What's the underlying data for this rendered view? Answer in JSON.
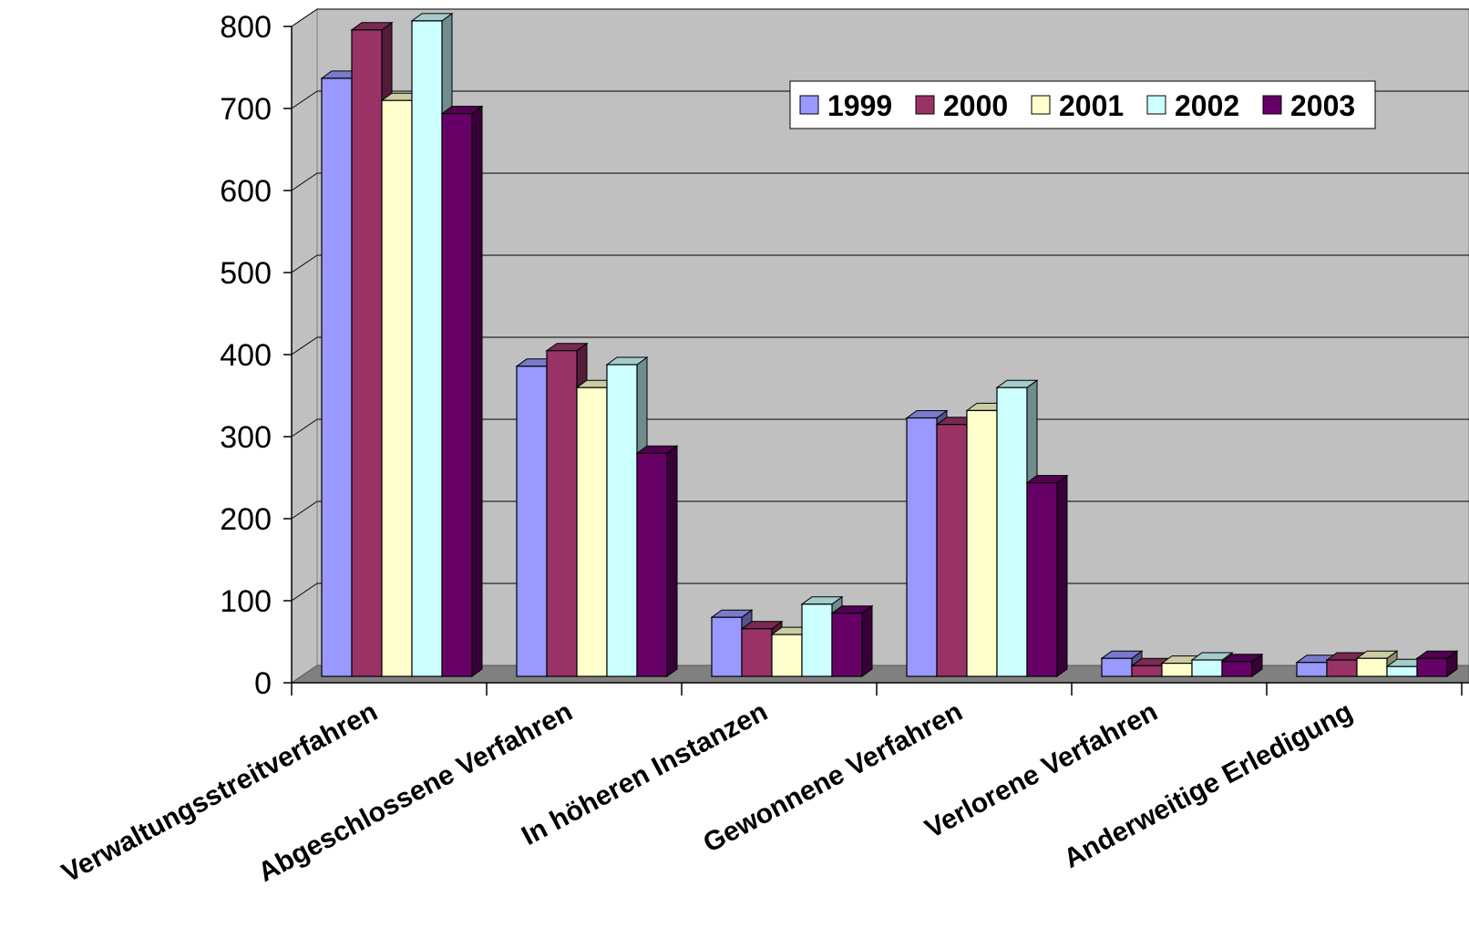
{
  "chart_data": {
    "type": "bar",
    "style": "3d-clustered-column",
    "categories": [
      "Verwaltungsstreitverfahren",
      "Abgeschlossene Verfahren",
      "In höheren Instanzen",
      "Gewonnene Verfahren",
      "Verlorene Verfahren",
      "Anderweitige Erledigung"
    ],
    "series": [
      {
        "name": "1999",
        "color": "#9999ff",
        "values": [
          729,
          378,
          72,
          315,
          22,
          17
        ]
      },
      {
        "name": "2000",
        "color": "#993366",
        "values": [
          788,
          397,
          58,
          307,
          13,
          20
        ]
      },
      {
        "name": "2001",
        "color": "#ffffcc",
        "values": [
          702,
          352,
          51,
          324,
          16,
          22
        ]
      },
      {
        "name": "2002",
        "color": "#ccffff",
        "values": [
          799,
          380,
          88,
          352,
          20,
          12
        ]
      },
      {
        "name": "2003",
        "color": "#660066",
        "values": [
          686,
          272,
          77,
          236,
          18,
          22
        ]
      }
    ],
    "yticks": [
      "0",
      "100",
      "200",
      "300",
      "400",
      "500",
      "600",
      "700",
      "800"
    ],
    "ylim": [
      0,
      800
    ],
    "grid": true,
    "legend_position": "top-right",
    "plot_wall_color": "#c0c0c0",
    "floor_color": "#808080"
  }
}
